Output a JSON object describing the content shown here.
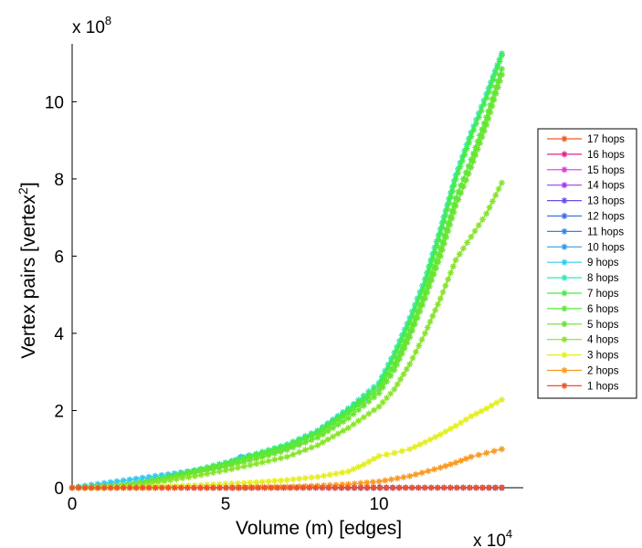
{
  "chart_data": {
    "type": "line",
    "title": "",
    "xlabel": "Volume (m) [edges]",
    "ylabel": "Vertex pairs [vertex^2]",
    "ylabel_parts": {
      "base": "Vertex pairs [vertex",
      "sup": "2",
      "close": "]"
    },
    "x_multiplier": {
      "base": "x 10",
      "exp": "4"
    },
    "y_multiplier": {
      "base": "x 10",
      "exp": "8"
    },
    "xlim": [
      0,
      14.7
    ],
    "ylim": [
      0,
      11.5
    ],
    "xticks": [
      0,
      5,
      10
    ],
    "xtick_labels": [
      "0",
      "5",
      "10"
    ],
    "yticks": [
      0,
      2,
      4,
      6,
      8,
      10
    ],
    "ytick_labels": [
      "0",
      "2",
      "4",
      "6",
      "8",
      "10"
    ],
    "grid": false,
    "legend_position": "right",
    "marker": "asterisk",
    "series": [
      {
        "name": "17 hops",
        "color": "#f05a28",
        "x": [
          0,
          14
        ],
        "y": [
          0,
          0
        ]
      },
      {
        "name": "16 hops",
        "color": "#e8208a",
        "x": [
          0,
          14
        ],
        "y": [
          0,
          0
        ]
      },
      {
        "name": "15 hops",
        "color": "#dd3bdd",
        "x": [
          0,
          14
        ],
        "y": [
          0,
          0
        ]
      },
      {
        "name": "14 hops",
        "color": "#a33be8",
        "x": [
          0,
          14
        ],
        "y": [
          0,
          0
        ]
      },
      {
        "name": "13 hops",
        "color": "#6a4ce6",
        "x": [
          0,
          14
        ],
        "y": [
          0,
          0
        ]
      },
      {
        "name": "12 hops",
        "color": "#3f6fe6",
        "x": [
          0,
          14
        ],
        "y": [
          0,
          0
        ]
      },
      {
        "name": "11 hops",
        "color": "#2f86e8",
        "x": [
          0,
          14
        ],
        "y": [
          0,
          0
        ]
      },
      {
        "name": "10 hops",
        "color": "#3399ea",
        "x": [
          0,
          5,
          5.5,
          6,
          7,
          8,
          9,
          9.6
        ],
        "y": [
          0,
          0.55,
          0.8,
          0.85,
          1.05,
          1.45,
          2.05,
          2.35
        ]
      },
      {
        "name": "9 hops",
        "color": "#33ccee",
        "x": [
          0,
          5,
          5.5,
          6,
          7,
          8,
          9,
          9.6
        ],
        "y": [
          0,
          0.55,
          0.78,
          0.82,
          1.02,
          1.42,
          2.02,
          2.32
        ]
      },
      {
        "name": "8 hops",
        "color": "#33e6bb",
        "x": [
          0,
          1,
          2,
          3,
          4,
          5,
          6,
          7,
          8,
          9,
          10,
          10.5,
          11,
          11.5,
          12,
          12.5,
          13,
          13.5,
          14
        ],
        "y": [
          0,
          0.02,
          0.1,
          0.25,
          0.45,
          0.65,
          0.88,
          1.12,
          1.48,
          2.05,
          2.72,
          3.5,
          4.4,
          5.4,
          6.7,
          8.1,
          9.2,
          10.2,
          11.25
        ]
      },
      {
        "name": "7 hops",
        "color": "#46ec46",
        "x": [
          0,
          1,
          2,
          3,
          4,
          5,
          6,
          7,
          8,
          9,
          10,
          10.5,
          11,
          11.5,
          12,
          12.5,
          13,
          13.5,
          14
        ],
        "y": [
          0,
          0.02,
          0.1,
          0.25,
          0.44,
          0.64,
          0.86,
          1.1,
          1.45,
          2.0,
          2.65,
          3.4,
          4.3,
          5.3,
          6.6,
          8.0,
          9.1,
          10.1,
          11.2
        ]
      },
      {
        "name": "6 hops",
        "color": "#5ae83a",
        "x": [
          0,
          1,
          2,
          3,
          4,
          5,
          6,
          7,
          8,
          9,
          10,
          10.5,
          11,
          11.5,
          12,
          12.5,
          13,
          13.5,
          14
        ],
        "y": [
          0,
          0.02,
          0.09,
          0.23,
          0.42,
          0.6,
          0.82,
          1.05,
          1.4,
          1.92,
          2.55,
          3.2,
          4.05,
          5.05,
          6.2,
          7.5,
          8.5,
          9.6,
          10.85
        ]
      },
      {
        "name": "5 hops",
        "color": "#6ae42e",
        "x": [
          0,
          1,
          2,
          3,
          4,
          5,
          6,
          7,
          8,
          9,
          10,
          10.5,
          11,
          11.5,
          12,
          12.5,
          13,
          13.5,
          14
        ],
        "y": [
          0,
          0.02,
          0.08,
          0.21,
          0.38,
          0.55,
          0.75,
          0.98,
          1.3,
          1.8,
          2.45,
          3.05,
          3.9,
          4.9,
          6.0,
          7.3,
          8.3,
          9.4,
          10.7
        ]
      },
      {
        "name": "4 hops",
        "color": "#88e42a",
        "x": [
          0,
          1,
          2,
          3,
          4,
          5,
          6,
          7,
          8,
          9,
          10,
          10.5,
          11,
          11.5,
          12,
          12.5,
          13,
          13.5,
          14
        ],
        "y": [
          0,
          0.01,
          0.06,
          0.17,
          0.3,
          0.45,
          0.62,
          0.8,
          1.1,
          1.55,
          2.1,
          2.55,
          3.2,
          4.0,
          4.9,
          5.9,
          6.5,
          7.1,
          7.9
        ]
      },
      {
        "name": "3 hops",
        "color": "#e4ee22",
        "x": [
          0,
          1,
          2,
          3,
          4,
          5,
          6,
          7,
          8,
          9,
          9.5,
          10,
          10.5,
          11,
          11.5,
          12,
          12.5,
          13,
          13.5,
          14
        ],
        "y": [
          0,
          0.0,
          0.01,
          0.03,
          0.06,
          0.1,
          0.14,
          0.2,
          0.28,
          0.42,
          0.6,
          0.82,
          0.9,
          1.0,
          1.18,
          1.38,
          1.6,
          1.85,
          2.05,
          2.28
        ]
      },
      {
        "name": "2 hops",
        "color": "#f79a24",
        "x": [
          0,
          5,
          7,
          8,
          9,
          10,
          11,
          12,
          12.5,
          13,
          13.5,
          14
        ],
        "y": [
          0,
          0.0,
          0.02,
          0.05,
          0.09,
          0.16,
          0.3,
          0.52,
          0.65,
          0.8,
          0.9,
          1.0
        ]
      },
      {
        "name": "1 hops",
        "color": "#f0502a",
        "x": [
          0,
          14
        ],
        "y": [
          0,
          0
        ]
      }
    ]
  }
}
